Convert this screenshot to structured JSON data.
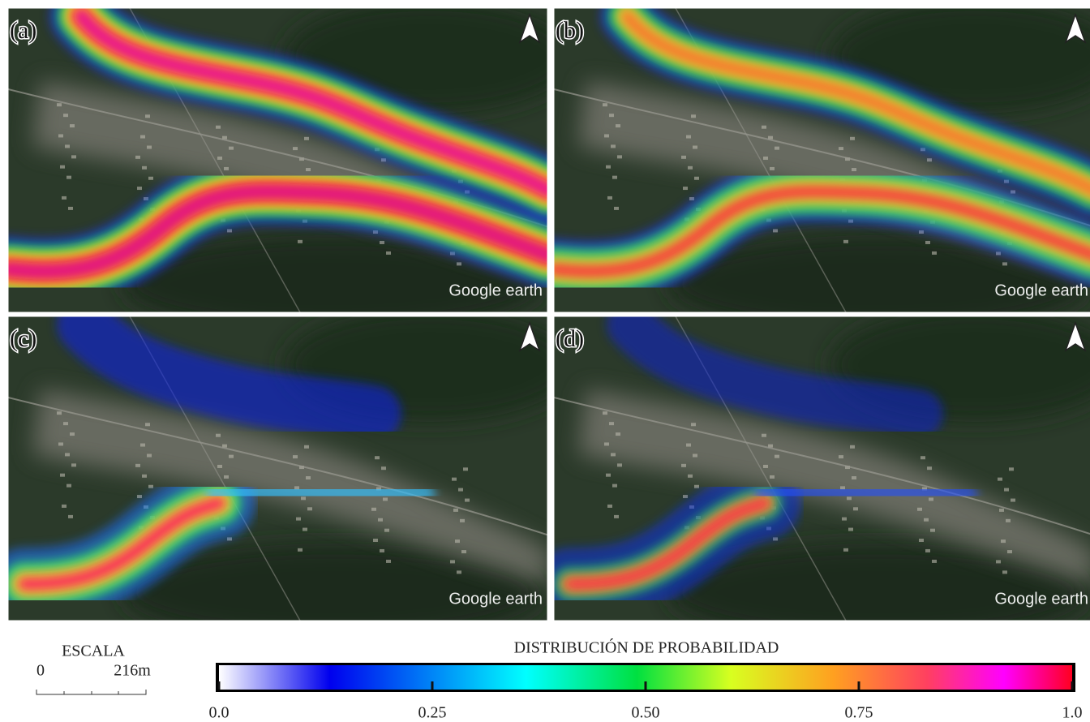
{
  "panels": [
    {
      "label": "(a)",
      "watermark": "Google earth"
    },
    {
      "label": "(b)",
      "watermark": "Google earth"
    },
    {
      "label": "(c)",
      "watermark": "Google earth"
    },
    {
      "label": "(d)",
      "watermark": "Google earth"
    }
  ],
  "legend": {
    "scale": {
      "title": "ESCALA",
      "start": "0",
      "end": "216m"
    },
    "colorbar": {
      "title": "DISTRIBUCIÓN DE PROBABILIDAD",
      "lim": [
        0,
        1
      ],
      "ticks": [
        {
          "value": 0,
          "label": "0.0"
        },
        0.25,
        {
          "value": 0.5,
          "label": "0.50"
        },
        0.75,
        {
          "value": 1,
          "label": "1.0"
        }
      ]
    }
  }
}
